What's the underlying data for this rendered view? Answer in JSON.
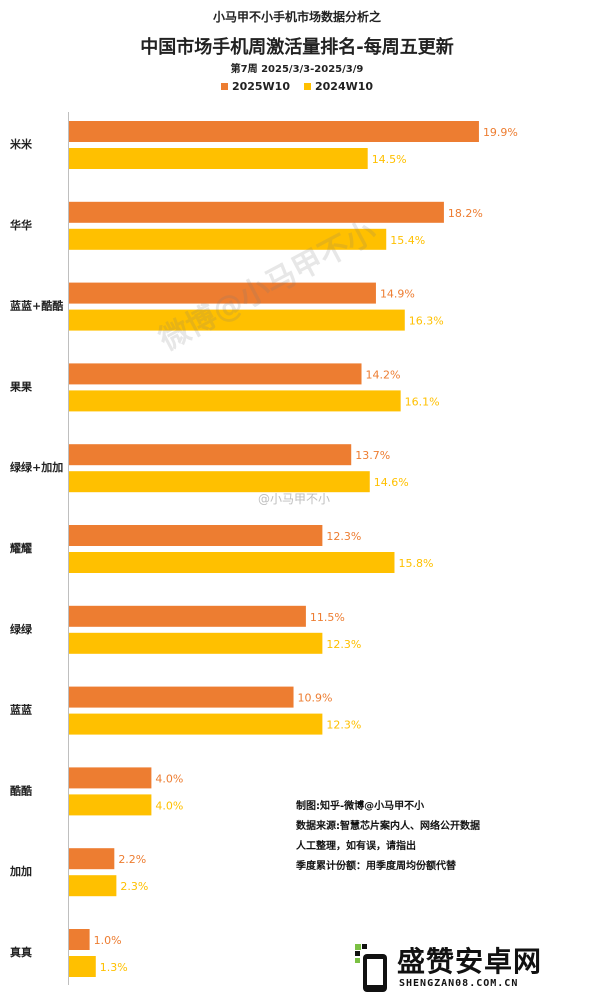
{
  "header": {
    "subtitle_top": "小马甲不小手机市场数据分析之",
    "title": "中国市场手机周激活量排名-每周五更新",
    "period": "第7周 2025/3/3-2025/3/9"
  },
  "notes": {
    "line1": "制图:知乎-微博@小马甲不小",
    "line2": "数据来源:智慧芯片案内人、网络公开数据",
    "line3": "人工整理，如有误，请指出",
    "line4": "季度累计份额：用季度周均份额代替"
  },
  "watermarks": {
    "diag": "微博@小马甲不小",
    "weibo": "@小马甲不小"
  },
  "brand": {
    "name": "盛赞安卓网",
    "url": "SHENGZAN08.COM.CN"
  },
  "chart_data": {
    "type": "bar",
    "orientation": "horizontal",
    "categories": [
      "米米",
      "华华",
      "蓝蓝+酷酷",
      "果果",
      "绿绿+加加",
      "耀耀",
      "绿绿",
      "蓝蓝",
      "酷酷",
      "加加",
      "真真"
    ],
    "series": [
      {
        "name": "2025W10",
        "color": "#ed7d31",
        "values": [
          19.9,
          18.2,
          14.9,
          14.2,
          13.7,
          12.3,
          11.5,
          10.9,
          4.0,
          2.2,
          1.0
        ]
      },
      {
        "name": "2024W10",
        "color": "#ffc000",
        "values": [
          14.5,
          15.4,
          16.3,
          16.1,
          14.6,
          15.8,
          12.3,
          12.3,
          4.0,
          2.3,
          1.3
        ]
      }
    ],
    "value_suffix": "%",
    "xlim": [
      0,
      20
    ],
    "grid": false,
    "legend": "top-center"
  }
}
